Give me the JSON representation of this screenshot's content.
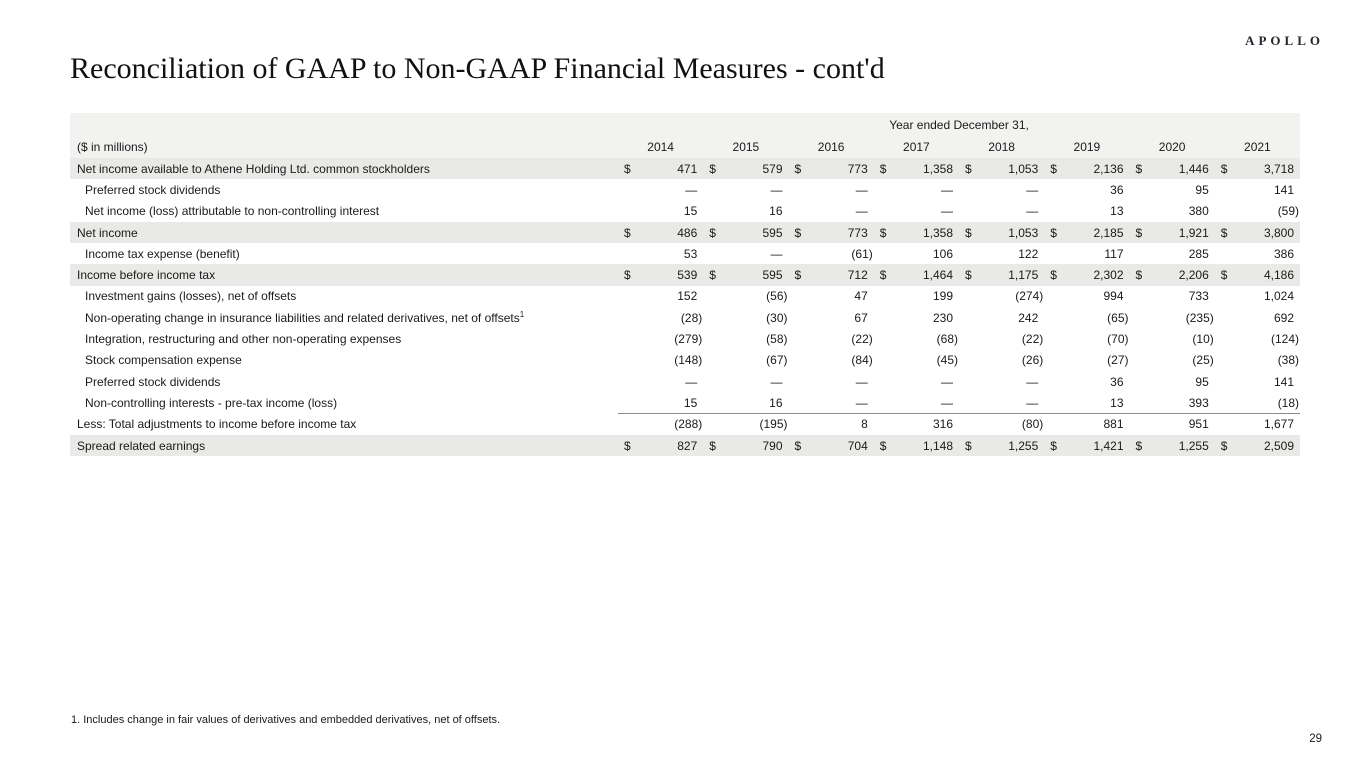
{
  "logo": "APOLLO",
  "title": "Reconciliation of GAAP to Non-GAAP Financial Measures - cont'd",
  "footnote": "1. Includes change in fair values of derivatives and embedded derivatives, net of offsets.",
  "page_number": "29",
  "table": {
    "caption": "Year ended December 31,",
    "units_label": "($ in millions)",
    "currency_symbol": "$",
    "years": [
      "2014",
      "2015",
      "2016",
      "2017",
      "2018",
      "2019",
      "2020",
      "2021"
    ],
    "rows": [
      {
        "label": "Net income available to Athene Holding Ltd. common stockholders",
        "kind": "subtotal",
        "currency": true,
        "values": [
          "471",
          "579",
          "773",
          "1,358",
          "1,053",
          "2,136",
          "1,446",
          "3,718"
        ]
      },
      {
        "label": "Preferred stock dividends",
        "kind": "item",
        "values": [
          "—",
          "—",
          "—",
          "—",
          "—",
          "36",
          "95",
          "141"
        ]
      },
      {
        "label": "Net income (loss) attributable to non-controlling interest",
        "kind": "item",
        "values": [
          "15",
          "16",
          "—",
          "—",
          "—",
          "13",
          "380",
          "(59)"
        ]
      },
      {
        "label": "Net income",
        "kind": "subtotal",
        "currency": true,
        "values": [
          "486",
          "595",
          "773",
          "1,358",
          "1,053",
          "2,185",
          "1,921",
          "3,800"
        ]
      },
      {
        "label": "Income tax expense (benefit)",
        "kind": "item",
        "values": [
          "53",
          "—",
          "(61)",
          "106",
          "122",
          "117",
          "285",
          "386"
        ]
      },
      {
        "label": "Income before income tax",
        "kind": "subtotal",
        "currency": true,
        "values": [
          "539",
          "595",
          "712",
          "1,464",
          "1,175",
          "2,302",
          "2,206",
          "4,186"
        ]
      },
      {
        "label": "Investment gains (losses), net of offsets",
        "kind": "item",
        "values": [
          "152",
          "(56)",
          "47",
          "199",
          "(274)",
          "994",
          "733",
          "1,024"
        ]
      },
      {
        "label": "Non-operating change in insurance liabilities and related derivatives, net of offsets",
        "sup": "1",
        "kind": "item",
        "values": [
          "(28)",
          "(30)",
          "67",
          "230",
          "242",
          "(65)",
          "(235)",
          "692"
        ]
      },
      {
        "label": "Integration, restructuring and other non-operating expenses",
        "kind": "item",
        "values": [
          "(279)",
          "(58)",
          "(22)",
          "(68)",
          "(22)",
          "(70)",
          "(10)",
          "(124)"
        ]
      },
      {
        "label": "Stock compensation expense",
        "kind": "item",
        "values": [
          "(148)",
          "(67)",
          "(84)",
          "(45)",
          "(26)",
          "(27)",
          "(25)",
          "(38)"
        ]
      },
      {
        "label": "Preferred stock dividends",
        "kind": "item",
        "values": [
          "—",
          "—",
          "—",
          "—",
          "—",
          "36",
          "95",
          "141"
        ]
      },
      {
        "label": "Non-controlling interests - pre-tax income (loss)",
        "kind": "item",
        "rule_below": true,
        "values": [
          "15",
          "16",
          "—",
          "—",
          "—",
          "13",
          "393",
          "(18)"
        ]
      },
      {
        "label": "Less: Total adjustments to income before income tax",
        "kind": "adjustment",
        "values": [
          "(288)",
          "(195)",
          "8",
          "316",
          "(80)",
          "881",
          "951",
          "1,677"
        ]
      },
      {
        "label": "Spread related earnings",
        "kind": "subtotal",
        "currency": true,
        "values": [
          "827",
          "790",
          "704",
          "1,148",
          "1,255",
          "1,421",
          "1,255",
          "2,509"
        ]
      }
    ]
  }
}
